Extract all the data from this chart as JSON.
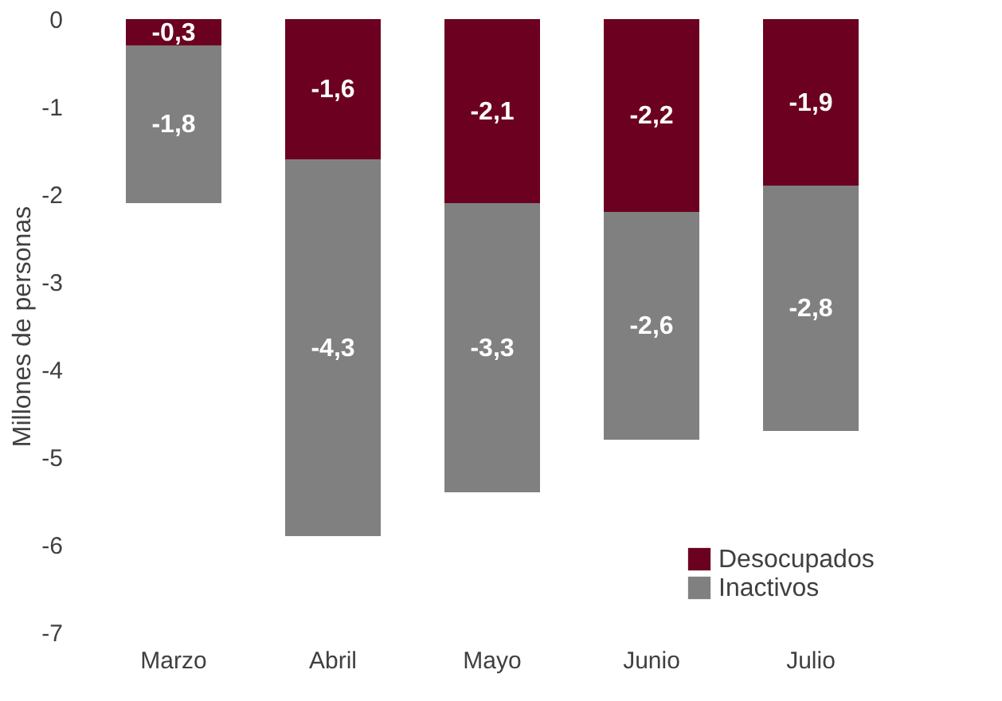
{
  "chart_data": {
    "type": "bar",
    "stacked": true,
    "ylabel": "Millones de personas",
    "categories": [
      "Marzo",
      "Abril",
      "Mayo",
      "Junio",
      "Julio"
    ],
    "series": [
      {
        "name": "Desocupados",
        "color": "#6b0020",
        "values": [
          -0.3,
          -1.6,
          -2.1,
          -2.2,
          -1.9
        ],
        "value_labels": [
          "-0,3",
          "-1,6",
          "-2,1",
          "-2,2",
          "-1,9"
        ]
      },
      {
        "name": "Inactivos",
        "color": "#808080",
        "values": [
          -1.8,
          -4.3,
          -3.3,
          -2.6,
          -2.8
        ],
        "value_labels": [
          "-1,8",
          "-4,3",
          "-3,3",
          "-2,6",
          "-2,8"
        ]
      }
    ],
    "ylim": [
      -7,
      0
    ],
    "yticks": [
      -7,
      -6,
      -5,
      -4,
      -3,
      -2,
      -1,
      0
    ],
    "grid": false,
    "legend": "bottom right"
  }
}
